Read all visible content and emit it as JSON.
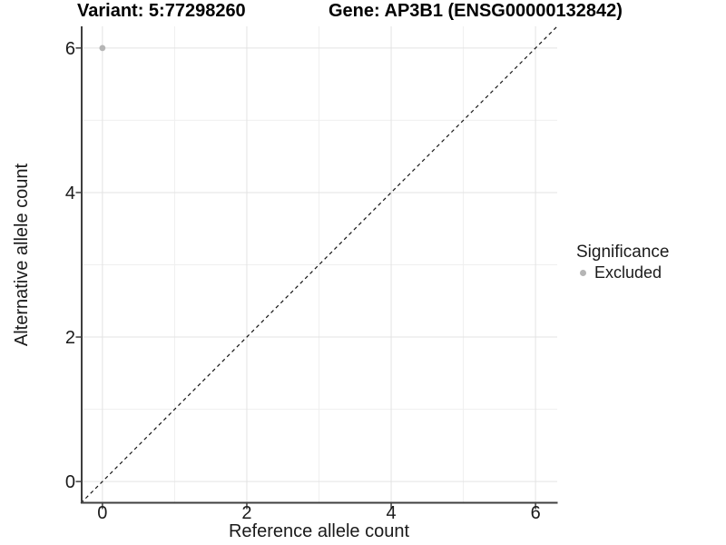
{
  "chart_data": {
    "type": "scatter",
    "title_left": "Variant: 5:77298260",
    "title_right": "Gene: AP3B1 (ENSG00000132842)",
    "xlabel": "Reference allele count",
    "ylabel": "Alternative allele count",
    "xlim": [
      -0.3,
      6.3
    ],
    "ylim": [
      -0.3,
      6.3
    ],
    "x_ticks": [
      0,
      2,
      4,
      6
    ],
    "y_ticks": [
      0,
      2,
      4,
      6
    ],
    "x_minor_ticks": [
      1,
      3,
      5
    ],
    "y_minor_ticks": [
      1,
      3,
      5
    ],
    "grid": true,
    "points": [
      {
        "x": 0,
        "y": 6,
        "significance": "Excluded"
      }
    ],
    "reference_line": {
      "kind": "identity",
      "slope": 1,
      "intercept": 0,
      "style": "dashed"
    },
    "legend": {
      "title": "Significance",
      "position": "right",
      "items": [
        {
          "label": "Excluded",
          "color": "#b5b5b5"
        }
      ]
    },
    "colors": {
      "background": "#ffffff",
      "point": "#b5b5b5",
      "grid_major": "#e3e3e3",
      "grid_minor": "#efefef",
      "axis_line": "#3f3f3f",
      "tick_mark": "#3f3f3f",
      "tick_label": "#1a1a1a",
      "dashed_line": "#141414"
    }
  }
}
